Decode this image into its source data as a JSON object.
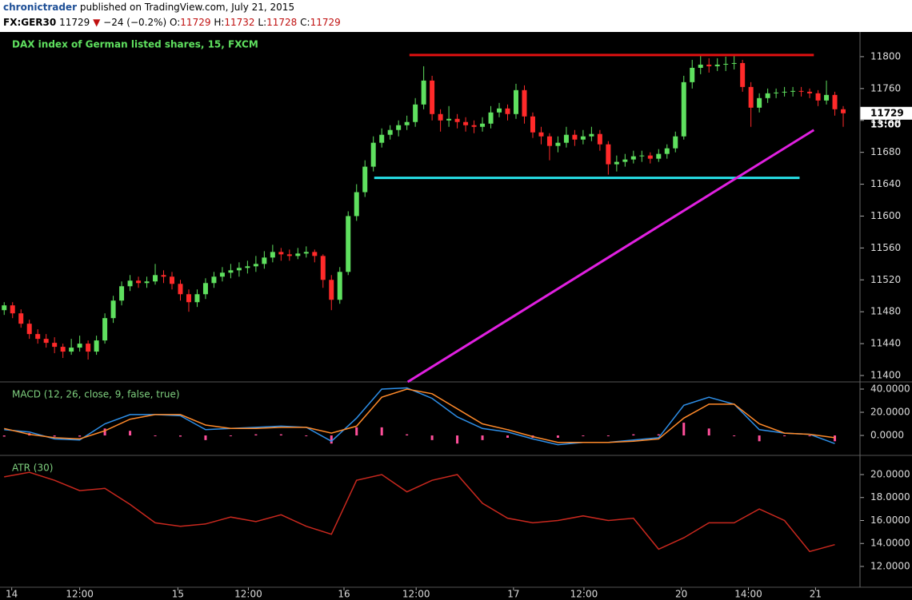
{
  "header": {
    "author": "chronictrader",
    "published": "published on TradingView.com, July 21, 2015",
    "symbol": "FX:GER30",
    "last": "11729",
    "arrow": "▼",
    "change": "−24 (−0.2%)",
    "ohlc": [
      {
        "label": "O:",
        "value": "11729"
      },
      {
        "label": "H:",
        "value": "11732"
      },
      {
        "label": "L:",
        "value": "11728"
      },
      {
        "label": "C:",
        "value": "11729"
      }
    ]
  },
  "chart_data": [
    {
      "type": "candlestick",
      "title": "DAX index of German listed shares, 15, FXCM",
      "up_color": "#5fe05f",
      "down_color": "#ff2a2a",
      "last_price": 11729,
      "countdown": "13:00",
      "xlim": [
        -0.5,
        102
      ],
      "xticks": [
        {
          "value": 0.9,
          "label": "14"
        },
        {
          "value": 9.0,
          "label": "12:00"
        },
        {
          "value": 20.7,
          "label": "15"
        },
        {
          "value": 29.1,
          "label": "12:00"
        },
        {
          "value": 40.5,
          "label": "16"
        },
        {
          "value": 49.1,
          "label": "12:00"
        },
        {
          "value": 60.7,
          "label": "17"
        },
        {
          "value": 69.1,
          "label": "12:00"
        },
        {
          "value": 80.7,
          "label": "20"
        },
        {
          "value": 88.7,
          "label": "14:00"
        },
        {
          "value": 96.7,
          "label": "21"
        }
      ],
      "ylim": [
        11392,
        11831
      ],
      "yticks": [
        11400,
        11440,
        11480,
        11520,
        11560,
        11600,
        11640,
        11680,
        11720,
        11760,
        11800
      ],
      "ohlc": [
        [
          11482,
          11492,
          11476,
          11488
        ],
        [
          11488,
          11492,
          11472,
          11478
        ],
        [
          11478,
          11483,
          11460,
          11465
        ],
        [
          11465,
          11470,
          11446,
          11452
        ],
        [
          11452,
          11458,
          11440,
          11446
        ],
        [
          11446,
          11452,
          11435,
          11441
        ],
        [
          11441,
          11448,
          11428,
          11436
        ],
        [
          11436,
          11440,
          11422,
          11430
        ],
        [
          11430,
          11446,
          11426,
          11435
        ],
        [
          11435,
          11450,
          11430,
          11440
        ],
        [
          11440,
          11444,
          11420,
          11430
        ],
        [
          11430,
          11450,
          11426,
          11444
        ],
        [
          11444,
          11478,
          11440,
          11472
        ],
        [
          11472,
          11500,
          11466,
          11494
        ],
        [
          11494,
          11518,
          11488,
          11512
        ],
        [
          11512,
          11526,
          11506,
          11519
        ],
        [
          11519,
          11524,
          11510,
          11516
        ],
        [
          11516,
          11524,
          11510,
          11518
        ],
        [
          11518,
          11540,
          11514,
          11526
        ],
        [
          11526,
          11532,
          11516,
          11524
        ],
        [
          11524,
          11530,
          11508,
          11515
        ],
        [
          11515,
          11520,
          11494,
          11502
        ],
        [
          11502,
          11508,
          11480,
          11492
        ],
        [
          11492,
          11508,
          11486,
          11502
        ],
        [
          11502,
          11522,
          11496,
          11516
        ],
        [
          11516,
          11530,
          11510,
          11524
        ],
        [
          11524,
          11536,
          11518,
          11529
        ],
        [
          11529,
          11540,
          11522,
          11532
        ],
        [
          11532,
          11542,
          11524,
          11535
        ],
        [
          11535,
          11544,
          11528,
          11537
        ],
        [
          11537,
          11550,
          11530,
          11540
        ],
        [
          11540,
          11556,
          11534,
          11548
        ],
        [
          11548,
          11564,
          11542,
          11555
        ],
        [
          11555,
          11560,
          11544,
          11552
        ],
        [
          11552,
          11558,
          11544,
          11550
        ],
        [
          11550,
          11560,
          11546,
          11553
        ],
        [
          11553,
          11562,
          11548,
          11555
        ],
        [
          11555,
          11558,
          11542,
          11550
        ],
        [
          11550,
          11552,
          11510,
          11520
        ],
        [
          11520,
          11526,
          11482,
          11495
        ],
        [
          11495,
          11536,
          11490,
          11530
        ],
        [
          11530,
          11606,
          11526,
          11600
        ],
        [
          11600,
          11640,
          11594,
          11630
        ],
        [
          11630,
          11670,
          11624,
          11662
        ],
        [
          11662,
          11700,
          11656,
          11692
        ],
        [
          11692,
          11710,
          11686,
          11702
        ],
        [
          11702,
          11714,
          11696,
          11708
        ],
        [
          11708,
          11720,
          11700,
          11714
        ],
        [
          11714,
          11726,
          11708,
          11718
        ],
        [
          11718,
          11748,
          11712,
          11740
        ],
        [
          11740,
          11788,
          11734,
          11770
        ],
        [
          11770,
          11776,
          11720,
          11728
        ],
        [
          11728,
          11734,
          11706,
          11720
        ],
        [
          11720,
          11738,
          11712,
          11722
        ],
        [
          11722,
          11728,
          11710,
          11718
        ],
        [
          11718,
          11724,
          11706,
          11714
        ],
        [
          11714,
          11720,
          11704,
          11712
        ],
        [
          11712,
          11724,
          11706,
          11716
        ],
        [
          11716,
          11738,
          11710,
          11730
        ],
        [
          11730,
          11742,
          11724,
          11735
        ],
        [
          11735,
          11740,
          11720,
          11728
        ],
        [
          11728,
          11766,
          11722,
          11758
        ],
        [
          11758,
          11764,
          11716,
          11725
        ],
        [
          11725,
          11730,
          11698,
          11705
        ],
        [
          11705,
          11712,
          11690,
          11700
        ],
        [
          11700,
          11704,
          11670,
          11688
        ],
        [
          11688,
          11700,
          11680,
          11692
        ],
        [
          11692,
          11712,
          11686,
          11702
        ],
        [
          11702,
          11708,
          11688,
          11696
        ],
        [
          11696,
          11708,
          11690,
          11700
        ],
        [
          11700,
          11712,
          11694,
          11703
        ],
        [
          11703,
          11708,
          11682,
          11690
        ],
        [
          11690,
          11694,
          11652,
          11665
        ],
        [
          11665,
          11676,
          11656,
          11668
        ],
        [
          11668,
          11678,
          11662,
          11671
        ],
        [
          11671,
          11682,
          11666,
          11675
        ],
        [
          11675,
          11682,
          11668,
          11676
        ],
        [
          11676,
          11680,
          11666,
          11672
        ],
        [
          11672,
          11684,
          11668,
          11678
        ],
        [
          11678,
          11690,
          11672,
          11685
        ],
        [
          11685,
          11706,
          11680,
          11700
        ],
        [
          11700,
          11776,
          11696,
          11768
        ],
        [
          11768,
          11796,
          11760,
          11786
        ],
        [
          11786,
          11802,
          11778,
          11790
        ],
        [
          11790,
          11798,
          11780,
          11788
        ],
        [
          11788,
          11798,
          11782,
          11790
        ],
        [
          11790,
          11800,
          11782,
          11791
        ],
        [
          11791,
          11802,
          11784,
          11792
        ],
        [
          11792,
          11796,
          11756,
          11762
        ],
        [
          11762,
          11768,
          11712,
          11736
        ],
        [
          11736,
          11754,
          11730,
          11748
        ],
        [
          11748,
          11760,
          11742,
          11754
        ],
        [
          11754,
          11760,
          11748,
          11755
        ],
        [
          11755,
          11762,
          11750,
          11756
        ],
        [
          11756,
          11762,
          11750,
          11757
        ],
        [
          11757,
          11762,
          11750,
          11756
        ],
        [
          11756,
          11760,
          11748,
          11754
        ],
        [
          11754,
          11758,
          11738,
          11745
        ],
        [
          11745,
          11770,
          11740,
          11752
        ],
        [
          11752,
          11756,
          11726,
          11734
        ],
        [
          11734,
          11738,
          11712,
          11729
        ]
      ],
      "lines": [
        {
          "color": "#e01010",
          "x": [
            48.3,
            96.5
          ],
          "y": [
            11802,
            11802
          ]
        },
        {
          "color": "#27e1e8",
          "x": [
            44.1,
            94.8
          ],
          "y": [
            11648,
            11648
          ]
        },
        {
          "color": "#e020e0",
          "x": [
            48.1,
            96.5
          ],
          "y": [
            11392,
            11708
          ]
        }
      ]
    },
    {
      "type": "line",
      "title": "MACD (12, 26, close, 9, false, true)",
      "xlim": [
        -0.5,
        102
      ],
      "ylim": [
        -17.2,
        46.2
      ],
      "yticks": [
        {
          "value": 40,
          "label": "40.0000"
        },
        {
          "value": 20,
          "label": "20.0000"
        },
        {
          "value": 0,
          "label": "0.0000"
        }
      ],
      "x": [
        0,
        3,
        6,
        9,
        12,
        15,
        18,
        21,
        24,
        27,
        30,
        33,
        36,
        39,
        42,
        45,
        48,
        51,
        54,
        57,
        60,
        63,
        66,
        69,
        72,
        75,
        78,
        81,
        84,
        87,
        90,
        93,
        96,
        99
      ],
      "series": [
        {
          "type": "histogram",
          "color": "#ff4f9a",
          "values": [
            -1,
            2,
            -1,
            -1,
            6,
            4,
            0,
            -1,
            -4,
            0,
            1,
            1,
            0,
            -7,
            7,
            7,
            1,
            -4,
            -7,
            -4,
            -2,
            -2,
            -2,
            0,
            0,
            1,
            1,
            11,
            6,
            0,
            -5,
            0,
            0,
            -5
          ]
        },
        {
          "type": "line",
          "color": "#2e8fe8",
          "values": [
            5,
            3,
            -3,
            -4,
            10,
            18,
            18,
            17,
            5,
            6,
            7,
            8,
            7,
            -5,
            15,
            40,
            41,
            32,
            16,
            6,
            3,
            -3,
            -8,
            -6,
            -6,
            -4,
            -2,
            26,
            33,
            27,
            5,
            2,
            1,
            -7
          ]
        },
        {
          "type": "line",
          "color": "#ff8a2a",
          "values": [
            6,
            1,
            -2,
            -3,
            4,
            14,
            18,
            18,
            9,
            6,
            6,
            7,
            7,
            2,
            8,
            33,
            40,
            36,
            23,
            10,
            5,
            -1,
            -6,
            -6,
            -6,
            -5,
            -3,
            15,
            27,
            27,
            10,
            2,
            1,
            -2
          ]
        }
      ]
    },
    {
      "type": "line",
      "title": "ATR (30)",
      "xlim": [
        -0.5,
        102
      ],
      "ylim": [
        10.19,
        21.67
      ],
      "yticks": [
        {
          "value": 20,
          "label": "20.0000"
        },
        {
          "value": 18,
          "label": "18.0000"
        },
        {
          "value": 16,
          "label": "16.0000"
        },
        {
          "value": 14,
          "label": "14.0000"
        },
        {
          "value": 12,
          "label": "12.0000"
        }
      ],
      "x": [
        0,
        3,
        6,
        9,
        12,
        15,
        18,
        21,
        24,
        27,
        30,
        33,
        36,
        39,
        42,
        45,
        48,
        51,
        54,
        57,
        60,
        63,
        66,
        69,
        72,
        75,
        78,
        81,
        84,
        87,
        90,
        93,
        96,
        99
      ],
      "series": [
        {
          "type": "line",
          "color": "#c8281e",
          "values": [
            19.8,
            20.2,
            19.5,
            18.6,
            18.8,
            17.4,
            15.8,
            15.5,
            15.7,
            16.3,
            15.9,
            16.5,
            15.5,
            14.8,
            19.5,
            20.0,
            18.5,
            19.5,
            20.0,
            17.5,
            16.2,
            15.8,
            16.0,
            16.4,
            16.0,
            16.2,
            13.5,
            14.5,
            15.8,
            15.8,
            17.0,
            16.0,
            13.3,
            13.9
          ]
        }
      ]
    }
  ]
}
